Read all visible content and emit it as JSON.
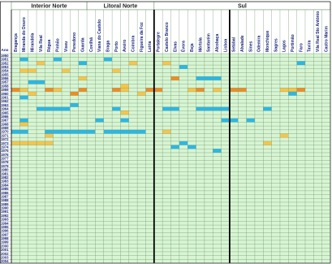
{
  "table": {
    "groups": [
      {
        "label": "Interior Norte",
        "start": 0,
        "span": 9
      },
      {
        "label": "Litoral Norte",
        "start": 9,
        "span": 8
      },
      {
        "label": "Sul",
        "start": 17,
        "span": 21
      }
    ],
    "year_header": "Ano",
    "columns": [
      "Bragança",
      "Miranda do Douro",
      "Mirandela",
      "Vila Real",
      "Régua",
      "Pinhão",
      "Viseu",
      "Penedono",
      "Guarda",
      "Covilhã",
      "Viana do Castelo",
      "Braga",
      "Porto",
      "Aveiro",
      "Coimbra",
      "Figueira da Foz",
      "Leiria",
      "Portalegre",
      "Castelo Branco",
      "Elvas",
      "Évora",
      "Beja",
      "Mértola",
      "Santarém",
      "Alcobaça",
      "Lisboa",
      "Setúbal",
      "Alvalade",
      "Sines",
      "Odemira",
      "Monchique",
      "Sagres",
      "Lagos",
      "Portimão",
      "Faro",
      "Tavira",
      "Vila Real Sto António",
      "Castro Marim"
    ],
    "years": [
      "1950",
      "1951",
      "1952",
      "1953",
      "1954",
      "1955",
      "1956",
      "1957",
      "1958",
      "1959",
      "1960",
      "1961",
      "1962",
      "1963",
      "1964",
      "1965",
      "1966",
      "1967",
      "1968",
      "1969",
      "1970",
      "1971",
      "1972",
      "1973",
      "1974",
      "1975",
      "1976",
      "1977",
      "1978",
      "1979",
      "1980",
      "1981",
      "1982",
      "1983",
      "1984",
      "1985",
      "1986",
      "1987",
      "1988",
      "1989",
      "1990",
      "1991",
      "1992",
      "1993",
      "1994",
      "1995",
      "1996",
      "1997",
      "1998",
      "1999",
      "2000",
      "2001",
      "2002",
      "2003",
      "2004"
    ],
    "palette": {
      "0": "#d7f5d2",
      "1": "#f7c548",
      "2": "#f08c22",
      "3": "#28b8e8",
      "4": "#ffffff",
      "grid": "#6b8f6b",
      "separator": "#000000"
    },
    "rows": [
      "00000000000000000000000000000000000000",
      "03000300000300000000000000000000000000",
      "00010000300000100010000000000000003000",
      "00000000000000000000300000000000000000",
      "01100010000010000000000000000000000000",
      "00000000000000000000000000000000000000",
      "00000000100000000002003330000000000000",
      "00330000000000000000000000000000000000",
      "00000000000001000000000000000000000000",
      "21002100200021002200012010220000112000",
      "00100002000000010000000000000000030000",
      "03000000000000000000000000000000000000",
      "00000000000000000000000000000000000000",
      "00000003000000000000000000000000000000",
      "00033330000030000033003333000030000000",
      "00000000000001000000000000000000000000",
      "00000000000000000000000000000000000000",
      "03000000003003000000000003303000000000",
      "01000000000000000000000000000000000000",
      "00000000000000000000000000000000000000",
      "33003333330333330010000000000000000000",
      "00001000000000000000000000000000100000",
      "00000000000000000000000000000000000000",
      "11111000000000000000300000000010000000",
      "00000000000000000003030000000000000000",
      "00000000000000000000000030000000000000",
      "00000000000000000000000000000000000000",
      "00000000000000000000000000000000000000",
      "00000000000000000000000000000000000000",
      "00000000000000000000000000000000000000",
      "00000000000000000000000000000000000000",
      "00000000000000000000000000000000000000",
      "00000000000000000000000000000000000000",
      "00000000000000000000000000000000000000",
      "00000000000000000000000000000000000000",
      "00000000000000000000000000000000000000",
      "00000000000000000000000000000000000000",
      "00000000000000000000000000000000000000",
      "00000000000000000000000000000000000000",
      "00000000000000000000000000000000000000",
      "00000000000000000000000000000000000000",
      "00000000000000000000000000000000000000",
      "00000000000000000000000000000000000000",
      "00000000000000000000000000000000000000",
      "00000000000000000000000000000000000000",
      "00000000000000000000000000000000000000",
      "00000000000000000000000000000000000000",
      "00000000000000000000000000000000000000",
      "00000000000000000000000000000000000000",
      "00000000000000000000000000000000000000",
      "00000000000000000000000000000000000000",
      "00000000000000000000000000000000000000",
      "00000000000000000000000000000000000000",
      "00000000000000000000000000000000000000",
      "00000000000000000000000000000000000000"
    ]
  }
}
